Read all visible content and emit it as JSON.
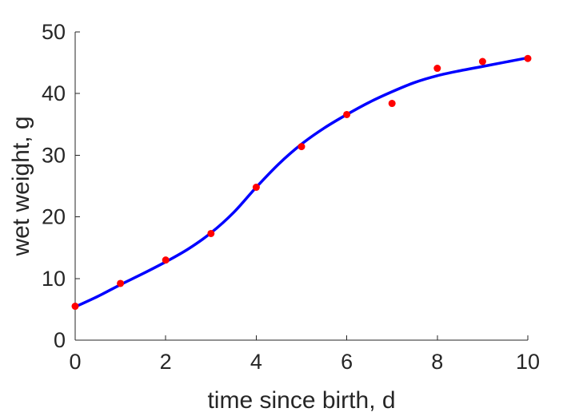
{
  "chart_data": {
    "type": "scatter",
    "xlabel": "time since birth, d",
    "ylabel": "wet weight, g",
    "xlim": [
      0,
      10
    ],
    "ylim": [
      0,
      50
    ],
    "xticks": [
      "0",
      "2",
      "4",
      "6",
      "8",
      "10"
    ],
    "yticks": [
      "0",
      "10",
      "20",
      "30",
      "40",
      "50"
    ],
    "grid": false,
    "legend": false,
    "series": [
      {
        "kind": "scatter",
        "color": "#ff0000",
        "x": [
          0,
          1,
          2,
          3,
          4,
          5,
          6,
          7,
          8,
          9,
          10
        ],
        "y": [
          5.5,
          9.2,
          13.0,
          17.3,
          24.8,
          31.4,
          36.6,
          38.4,
          44.1,
          45.2,
          45.7
        ]
      },
      {
        "kind": "line",
        "color": "#0000ff",
        "x": [
          0,
          0.5,
          1,
          1.5,
          2,
          2.5,
          3,
          3.5,
          4,
          4.5,
          5,
          5.5,
          6,
          6.5,
          7,
          7.5,
          8,
          8.5,
          9,
          9.5,
          10
        ],
        "y": [
          5.4,
          7.1,
          9.0,
          10.8,
          12.7,
          14.8,
          17.4,
          20.7,
          24.8,
          28.6,
          31.8,
          34.4,
          36.6,
          38.6,
          40.3,
          41.8,
          42.9,
          43.7,
          44.4,
          45.1,
          45.8
        ]
      }
    ]
  }
}
